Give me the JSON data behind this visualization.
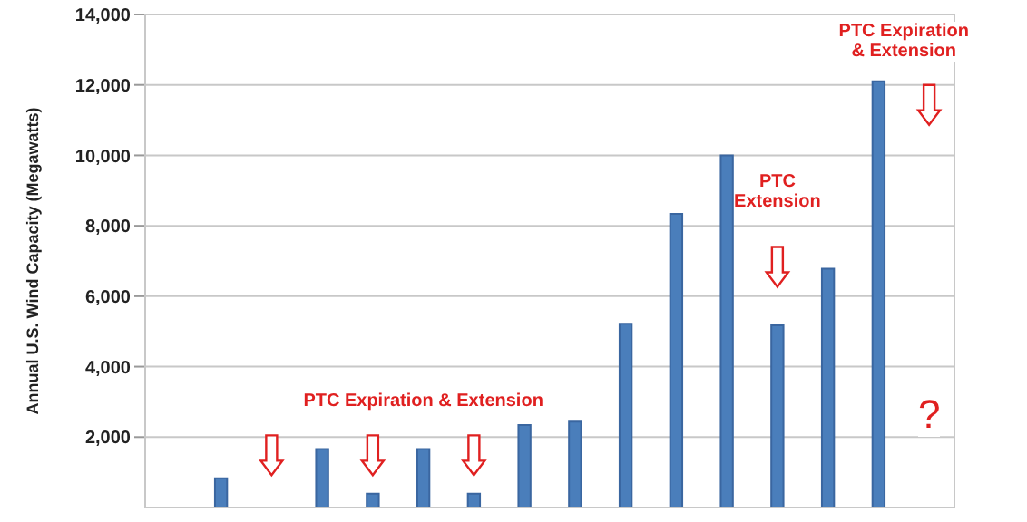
{
  "chart_data": {
    "type": "bar",
    "ylabel": "Annual U.S. Wind Capacity (Megawatts)",
    "categories": [
      null,
      null,
      null,
      null,
      null,
      null,
      null,
      null,
      null,
      null,
      null,
      null,
      null,
      null,
      null,
      null
    ],
    "values": [
      null,
      830,
      null,
      1660,
      390,
      1660,
      390,
      2340,
      2440,
      5220,
      8340,
      10000,
      5170,
      6780,
      12100,
      null
    ],
    "color": "#4a7ebb",
    "ylim": [
      0,
      14000
    ],
    "yticks": [
      {
        "value": 2000,
        "label": "2,000"
      },
      {
        "value": 4000,
        "label": "4,000"
      },
      {
        "value": 6000,
        "label": "6,000"
      },
      {
        "value": 8000,
        "label": "8,000"
      },
      {
        "value": 10000,
        "label": "10,000"
      },
      {
        "value": 12000,
        "label": "12,000"
      },
      {
        "value": 14000,
        "label": "14,000"
      }
    ],
    "grid": "y",
    "tick_labels": "y",
    "annotations": [
      "PTC Expiration & Extension",
      "PTC Extension",
      "PTC Expiration\n& Extension",
      "?"
    ]
  }
}
